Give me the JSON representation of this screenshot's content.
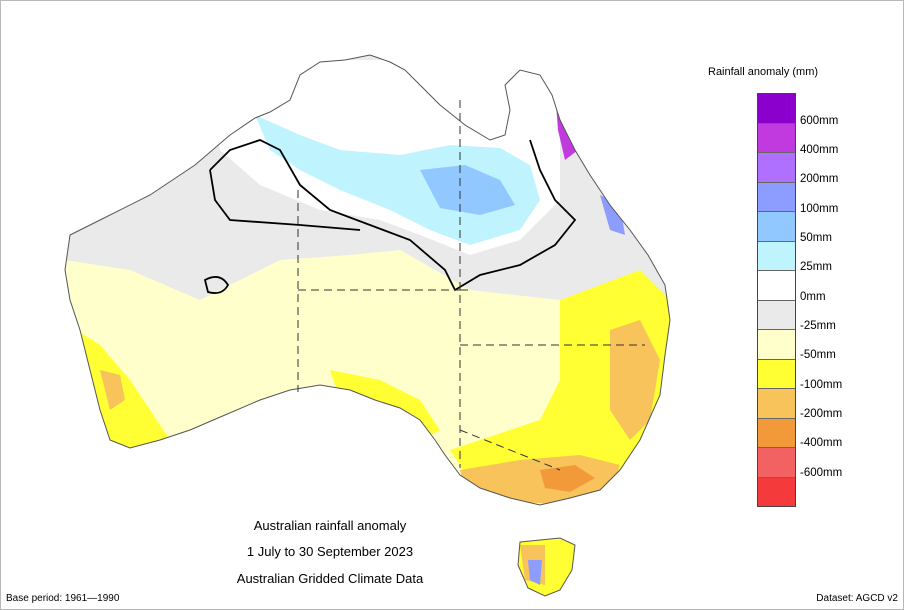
{
  "legend": {
    "title": "Rainfall anomaly (mm)",
    "bins": [
      {
        "label": "600mm",
        "color": "#8b00cc"
      },
      {
        "label": "400mm",
        "color": "#c03ae0"
      },
      {
        "label": "200mm",
        "color": "#b070ff"
      },
      {
        "label": "100mm",
        "color": "#8c9cff"
      },
      {
        "label": "50mm",
        "color": "#90c8ff"
      },
      {
        "label": "25mm",
        "color": "#bff4ff"
      },
      {
        "label": "0mm",
        "color": "#ffffff"
      },
      {
        "label": "-25mm",
        "color": "#eaeaea"
      },
      {
        "label": "-50mm",
        "color": "#ffffcc"
      },
      {
        "label": "-100mm",
        "color": "#ffff33"
      },
      {
        "label": "-200mm",
        "color": "#f8c35a"
      },
      {
        "label": "-400mm",
        "color": "#f29a3a"
      },
      {
        "label": "-600mm",
        "color": "#f26262"
      },
      {
        "label": "",
        "color": "#f43a3a"
      }
    ]
  },
  "caption": {
    "line1": "Australian rainfall anomaly",
    "line2": "1 July to 30 September 2023",
    "line3": "Australian Gridded Climate Data"
  },
  "footer": {
    "base_period": "Base period: 1961—1990",
    "dataset": "Dataset: AGCD v2"
  }
}
